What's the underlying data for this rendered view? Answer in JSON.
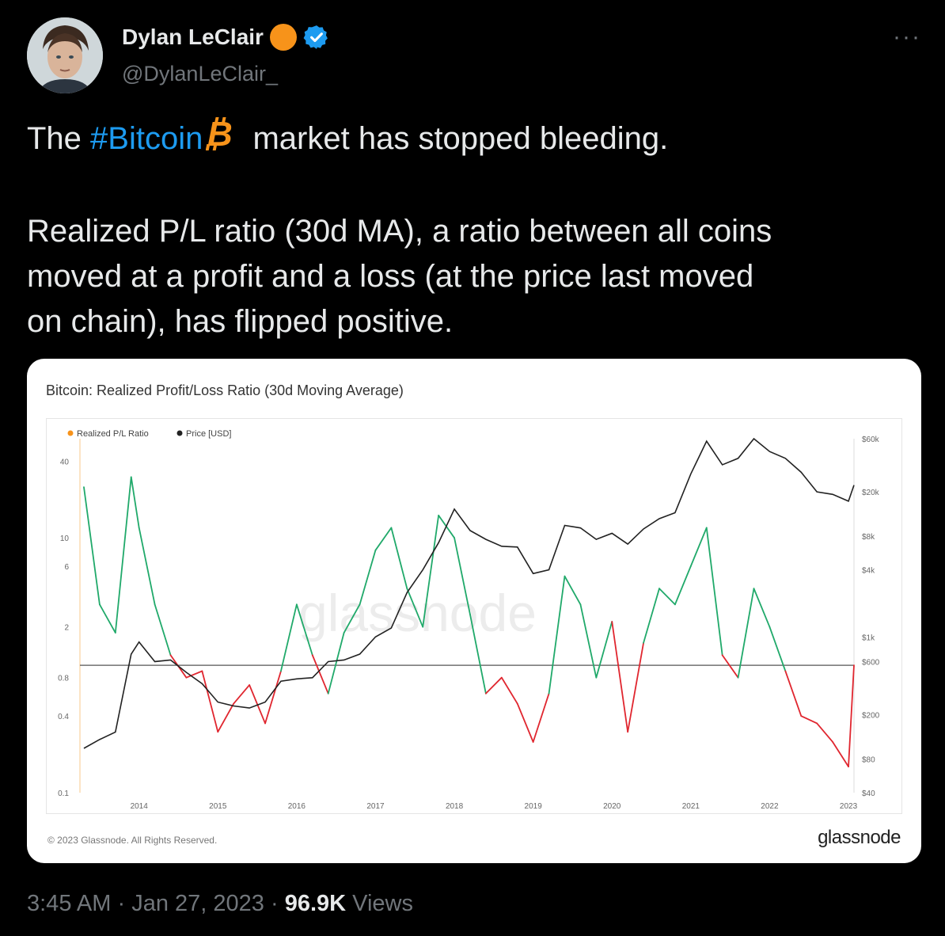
{
  "author": {
    "name": "Dylan LeClair",
    "handle": "@DylanLeClair_"
  },
  "more_label": "···",
  "tweet": {
    "line1_prefix": "The ",
    "hashtag": "#Bitcoin",
    "line1_suffix": " market has stopped bleeding.",
    "line2": "Realized P/L ratio (30d MA), a ratio between all coins",
    "line3": "moved at a profit and a loss (at the price last moved",
    "line4": "on chain), has flipped positive."
  },
  "chart": {
    "title": "Bitcoin: Realized Profit/Loss Ratio (30d Moving Average)",
    "legend": [
      "Realized P/L Ratio",
      "Price [USD]"
    ],
    "watermark": "glassnode",
    "copyright": "© 2023 Glassnode. All Rights Reserved.",
    "brand": "glassnode",
    "colors": {
      "profit": "#20a96a",
      "loss": "#e0262f",
      "price": "#222222",
      "legend_ratio": "#f7931a"
    }
  },
  "chart_data": {
    "type": "line",
    "title": "Bitcoin: Realized Profit/Loss Ratio (30d Moving Average)",
    "x": [
      "2013.3",
      "2013.5",
      "2013.7",
      "2013.9",
      "2014.0",
      "2014.2",
      "2014.4",
      "2014.6",
      "2014.8",
      "2015.0",
      "2015.2",
      "2015.4",
      "2015.6",
      "2015.8",
      "2016.0",
      "2016.2",
      "2016.4",
      "2016.6",
      "2016.8",
      "2017.0",
      "2017.2",
      "2017.4",
      "2017.6",
      "2017.8",
      "2018.0",
      "2018.2",
      "2018.4",
      "2018.6",
      "2018.8",
      "2019.0",
      "2019.2",
      "2019.4",
      "2019.6",
      "2019.8",
      "2020.0",
      "2020.2",
      "2020.4",
      "2020.6",
      "2020.8",
      "2021.0",
      "2021.2",
      "2021.4",
      "2021.6",
      "2021.8",
      "2022.0",
      "2022.2",
      "2022.4",
      "2022.6",
      "2022.8",
      "2023.0",
      "2023.07"
    ],
    "series": [
      {
        "name": "Realized P/L Ratio",
        "axis": "left",
        "scale": "log",
        "values": [
          25,
          3,
          1.8,
          30,
          12,
          3,
          1.2,
          0.8,
          0.9,
          0.3,
          0.5,
          0.7,
          0.35,
          0.9,
          3,
          1.2,
          0.6,
          1.8,
          3,
          8,
          12,
          4,
          2,
          15,
          10,
          2.5,
          0.6,
          0.8,
          0.5,
          0.25,
          0.6,
          5,
          3,
          0.8,
          2.2,
          0.3,
          1.5,
          4,
          3,
          6,
          12,
          1.2,
          0.8,
          4,
          2,
          0.9,
          0.4,
          0.35,
          0.25,
          0.16,
          1.0
        ]
      },
      {
        "name": "Price [USD]",
        "axis": "right",
        "scale": "log",
        "values": [
          100,
          120,
          140,
          700,
          900,
          600,
          620,
          480,
          380,
          260,
          240,
          230,
          260,
          400,
          420,
          430,
          600,
          620,
          700,
          1000,
          1200,
          2500,
          4000,
          7000,
          14000,
          9000,
          7500,
          6500,
          6400,
          3700,
          4000,
          10000,
          9500,
          7500,
          8500,
          6800,
          9300,
          11500,
          13000,
          29000,
          57000,
          35000,
          40000,
          60000,
          46000,
          40000,
          30000,
          20000,
          19000,
          16500,
          23000
        ]
      }
    ],
    "left_axis_ticks": [
      "0.1",
      "0.4",
      "0.8",
      "2",
      "6",
      "10",
      "40"
    ],
    "right_axis_ticks": [
      "$40",
      "$80",
      "$200",
      "$600",
      "$1k",
      "$4k",
      "$8k",
      "$20k",
      "$60k"
    ],
    "x_ticks": [
      "2014",
      "2015",
      "2016",
      "2017",
      "2018",
      "2019",
      "2020",
      "2021",
      "2022",
      "2023"
    ],
    "reference_line": 1,
    "grid": false,
    "legend_position": "top-left"
  },
  "meta": {
    "time": "3:45 AM",
    "date": "Jan 27, 2023",
    "views_count": "96.9K",
    "views_label": "Views",
    "sep": "·"
  }
}
